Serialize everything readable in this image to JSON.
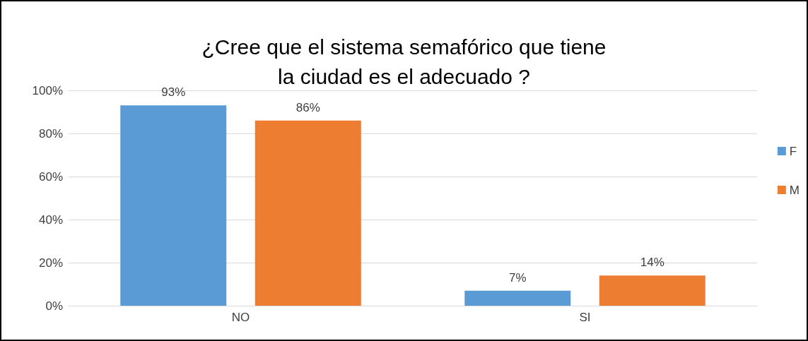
{
  "chart_data": {
    "type": "bar",
    "title": "¿Cree que el sistema semafórico que tiene\nla ciudad es el adecuado ?",
    "categories": [
      "NO",
      "SI"
    ],
    "series": [
      {
        "name": "F",
        "color": "#5b9bd5",
        "values": [
          93,
          7
        ],
        "value_labels": [
          "93%",
          "7%"
        ]
      },
      {
        "name": "M",
        "color": "#ed7d31",
        "values": [
          86,
          14
        ],
        "value_labels": [
          "86%",
          "14%"
        ]
      }
    ],
    "ylim": [
      0,
      100
    ],
    "yticks": [
      {
        "value": 0,
        "label": "0%"
      },
      {
        "value": 20,
        "label": "20%"
      },
      {
        "value": 40,
        "label": "40%"
      },
      {
        "value": 60,
        "label": "60%"
      },
      {
        "value": 80,
        "label": "80%"
      },
      {
        "value": 100,
        "label": "100%"
      }
    ],
    "grid": "y",
    "legend": "right"
  }
}
